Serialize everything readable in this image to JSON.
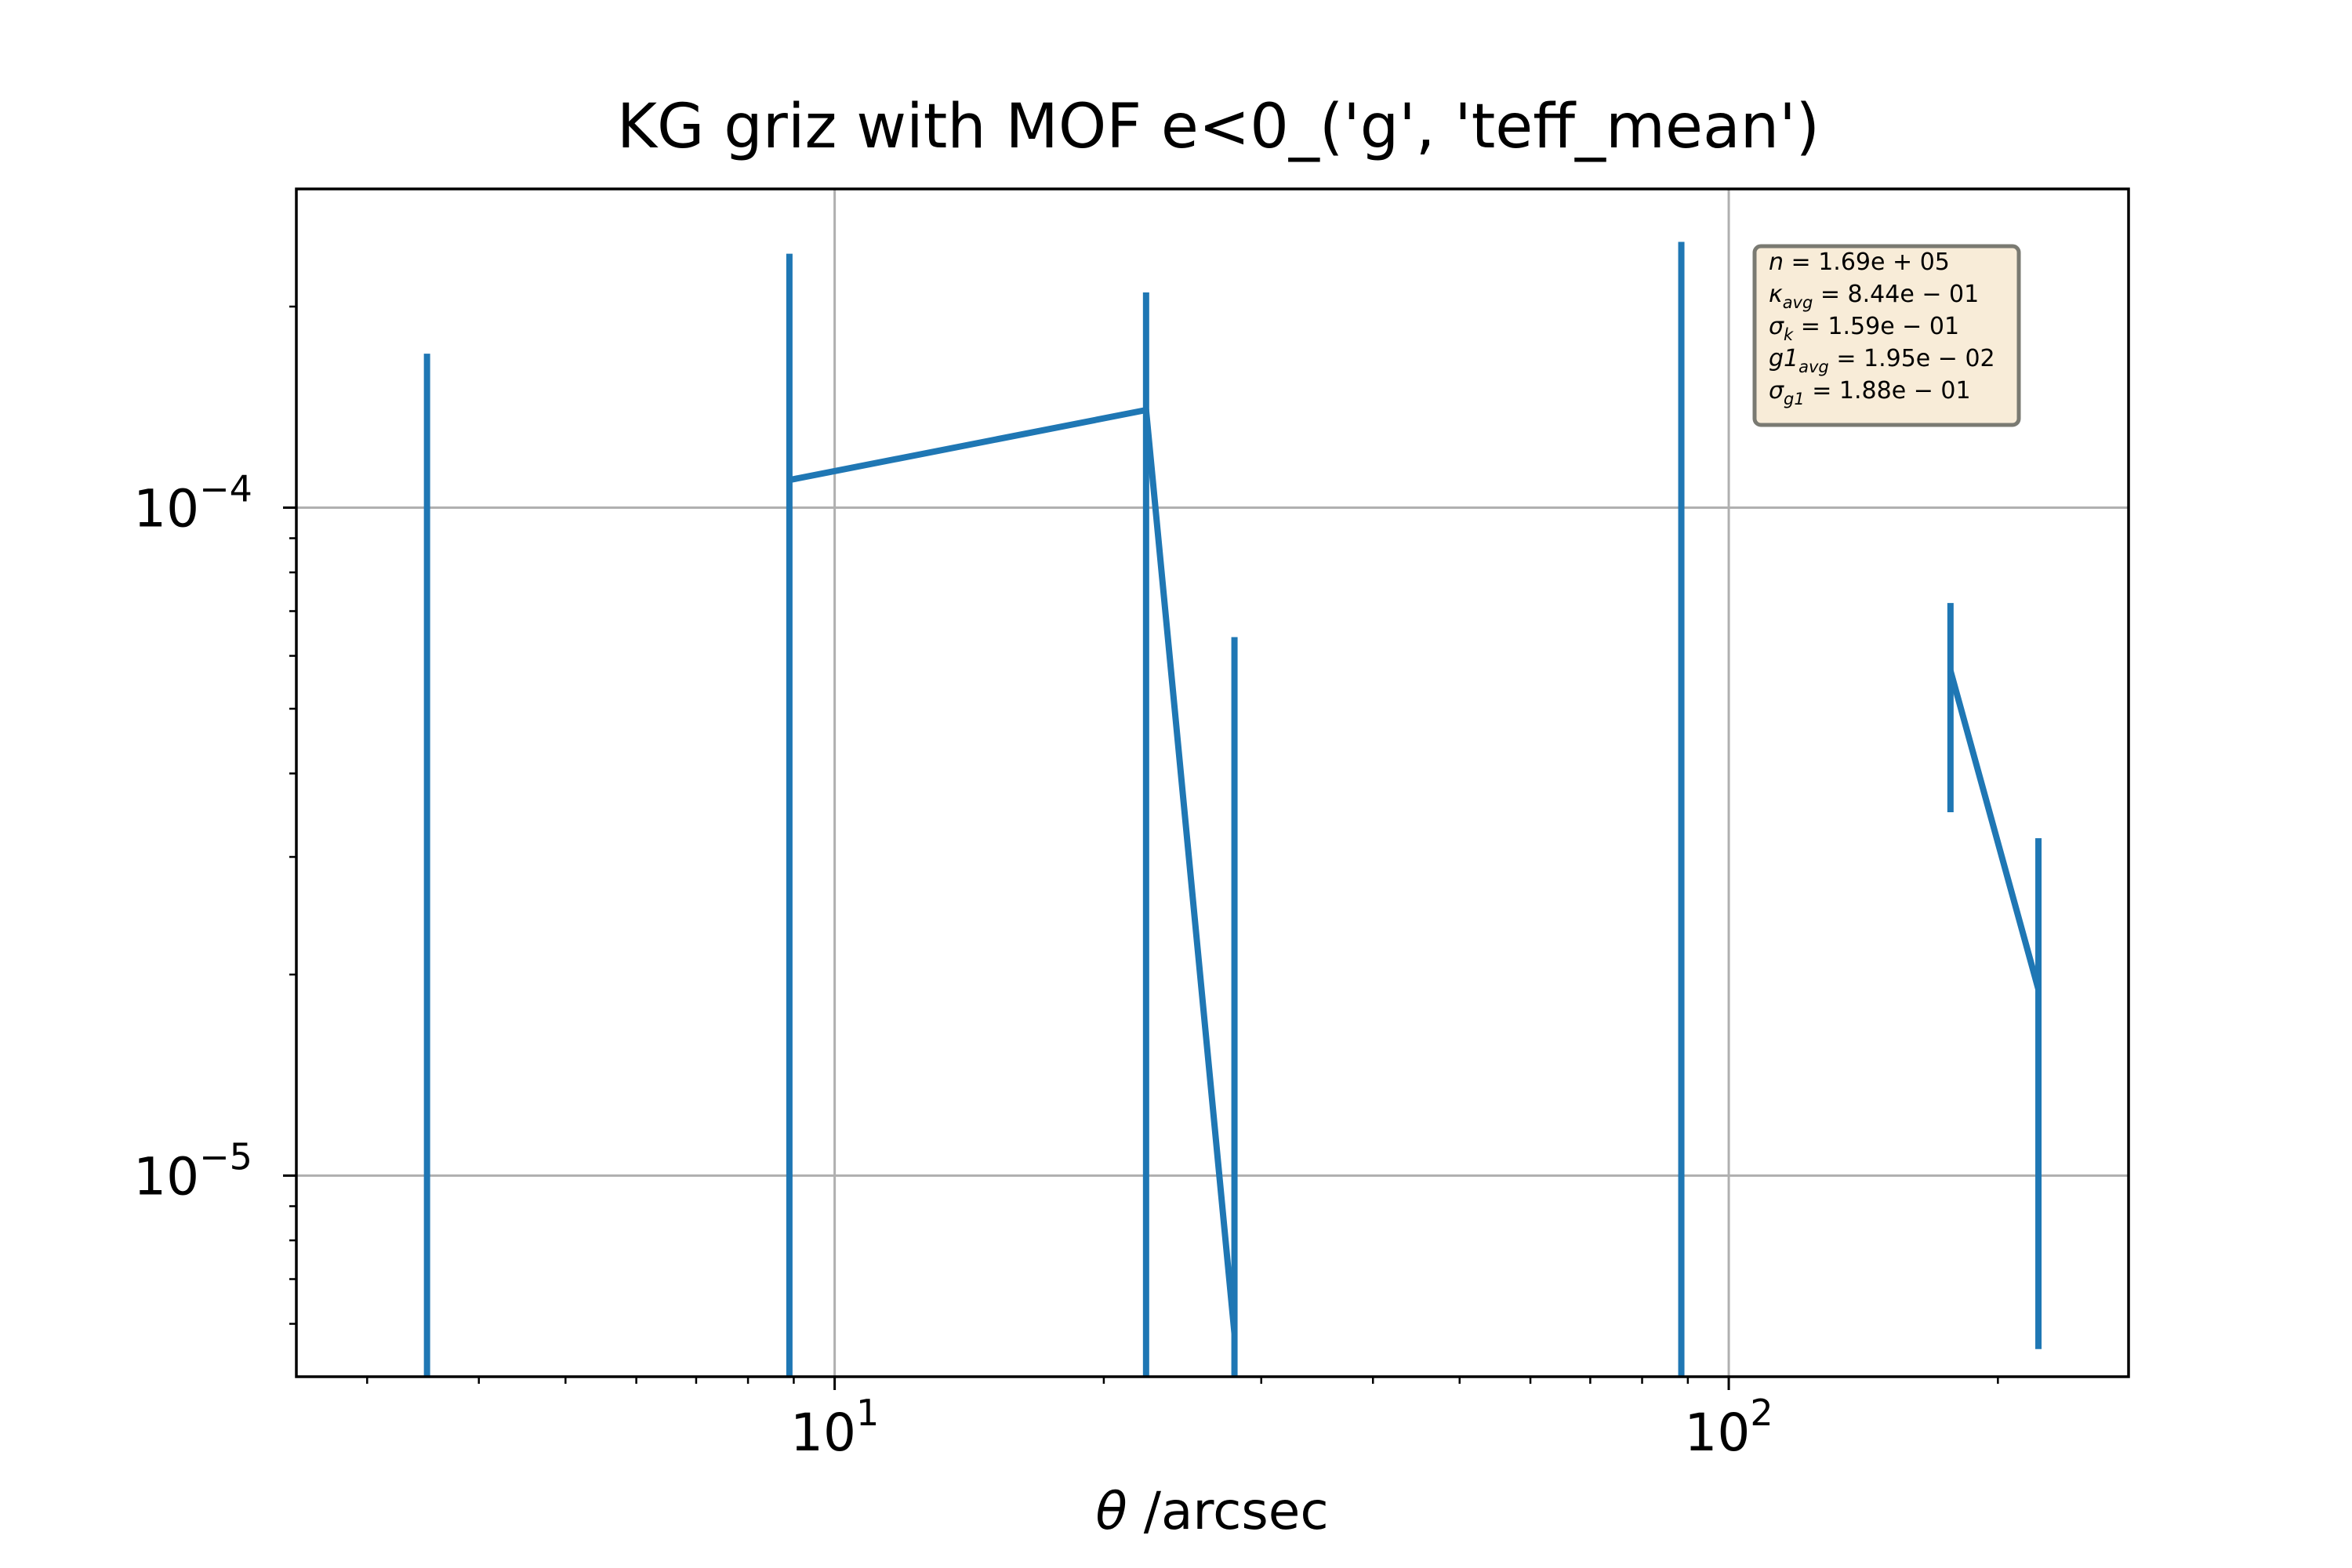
{
  "chart_data": {
    "type": "line",
    "title": "KG griz with MOF e<0_('g', 'teff_mean')",
    "xlabel_symbol": "θ",
    "xlabel_text": " /arcsec",
    "ylabel": "",
    "xscale": "log",
    "yscale": "log",
    "xlim": [
      2.5,
      280
    ],
    "ylim": [
      5e-06,
      0.0003
    ],
    "grid": true,
    "color": "#1f77b4",
    "x_ticks": [
      {
        "base": "10",
        "exp": "1",
        "value": 10
      },
      {
        "base": "10",
        "exp": "2",
        "value": 100
      }
    ],
    "y_ticks": [
      {
        "base": "10",
        "exp": "−4",
        "value": 0.0001
      },
      {
        "base": "10",
        "exp": "−5",
        "value": 1e-05
      }
    ],
    "series": [
      {
        "x": [
          3.5,
          8.9,
          22.3,
          28.0,
          88.5,
          177,
          222
        ],
        "y": [
          null,
          0.00011,
          0.00014,
          5.8e-06,
          null,
          5.7e-05,
          1.9e-05
        ],
        "err_low": [
          null,
          null,
          null,
          null,
          null,
          3.5e-05,
          5.5e-06
        ],
        "err_high": [
          0.00017,
          0.00024,
          0.00021,
          6.4e-05,
          0.00025,
          7.2e-05,
          3.2e-05
        ]
      }
    ],
    "stats_box": [
      {
        "sym": "n",
        "sub": "",
        "value": "1.69e + 05"
      },
      {
        "sym": "κ",
        "sub": "avg",
        "value": "8.44e − 01"
      },
      {
        "sym": "σ",
        "sub": "k",
        "value": "1.59e − 01"
      },
      {
        "sym": "g1",
        "sub": "avg",
        "value": "1.95e − 02"
      },
      {
        "sym": "σ",
        "sub": "g1",
        "value": "1.88e − 01"
      }
    ]
  }
}
